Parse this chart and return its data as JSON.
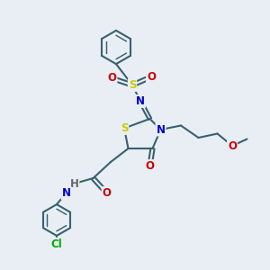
{
  "bg_color": "#e8eef4",
  "bond_color": "#3a6070",
  "bond_width": 1.5,
  "atom_colors": {
    "S": "#cccc00",
    "N": "#0000cc",
    "O": "#cc0000",
    "Cl": "#00aa00",
    "H": "#666666",
    "C": "#3a6070"
  },
  "font_size": 8.5
}
